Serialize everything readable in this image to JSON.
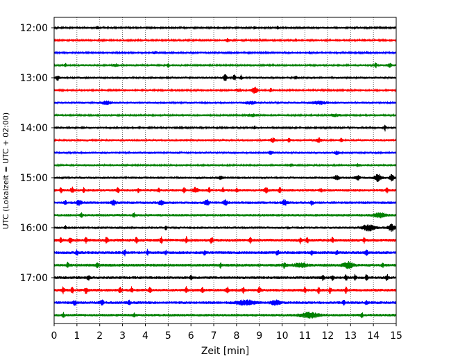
{
  "chart_data": {
    "type": "line",
    "title": "",
    "xlabel": "Zeit  [min]",
    "ylabel": "UTC (Lokalzeit = UTC + 02:00)",
    "xlim": [
      0,
      15
    ],
    "x_ticks": [
      "0",
      "1",
      "2",
      "3",
      "4",
      "5",
      "6",
      "7",
      "8",
      "9",
      "10",
      "11",
      "12",
      "13",
      "14",
      "15"
    ],
    "y_tick_labels": [
      "12:00",
      "13:00",
      "14:00",
      "15:00",
      "16:00",
      "17:00"
    ],
    "grid": "vertical dotted",
    "trace_interval_minutes": 15,
    "trace_colors": [
      "#000000",
      "#ff0000",
      "#0000ff",
      "#008000"
    ],
    "series": [
      {
        "start": "12:00",
        "color": "#000000",
        "noise": 0.2,
        "bursts": [
          [
            1.9,
            0.06,
            2
          ],
          [
            8.8,
            0.05,
            2
          ],
          [
            9.8,
            0.05,
            2
          ],
          [
            13.2,
            0.05,
            1.5
          ]
        ]
      },
      {
        "start": "12:15",
        "color": "#ff0000",
        "noise": 0.15,
        "bursts": [
          [
            7.6,
            0.1,
            2
          ],
          [
            10.6,
            0.05,
            1.5
          ],
          [
            13.6,
            0.05,
            1.2
          ]
        ]
      },
      {
        "start": "12:30",
        "color": "#0000ff",
        "noise": 0.2,
        "bursts": [
          [
            4.4,
            0.1,
            1.5
          ],
          [
            11.2,
            0.05,
            1.5
          ],
          [
            13.7,
            0.05,
            1.2
          ]
        ]
      },
      {
        "start": "12:45",
        "color": "#008000",
        "noise": 0.25,
        "bursts": [
          [
            0.5,
            0.05,
            2
          ],
          [
            2.7,
            0.1,
            1.5
          ],
          [
            5.0,
            0.04,
            4
          ],
          [
            14.1,
            0.04,
            4
          ],
          [
            14.7,
            0.1,
            2.5
          ]
        ]
      },
      {
        "start": "13:00",
        "color": "#000000",
        "noise": 0.3,
        "bursts": [
          [
            0.15,
            0.08,
            3
          ],
          [
            7.5,
            0.08,
            4
          ],
          [
            7.9,
            0.06,
            3.5
          ],
          [
            8.2,
            0.05,
            3
          ],
          [
            10.6,
            0.05,
            2
          ]
        ]
      },
      {
        "start": "13:15",
        "color": "#ff0000",
        "noise": 0.2,
        "bursts": [
          [
            8.1,
            0.15,
            1.5
          ],
          [
            8.8,
            0.15,
            4
          ],
          [
            9.5,
            0.06,
            2
          ]
        ]
      },
      {
        "start": "13:30",
        "color": "#0000ff",
        "noise": 0.35,
        "bursts": [
          [
            2.3,
            0.2,
            2
          ],
          [
            8.6,
            0.2,
            1.8
          ],
          [
            11.6,
            0.3,
            1.8
          ]
        ]
      },
      {
        "start": "13:45",
        "color": "#008000",
        "noise": 0.25,
        "bursts": [
          [
            8.7,
            0.2,
            1.5
          ],
          [
            12.3,
            0.2,
            1.5
          ]
        ]
      },
      {
        "start": "14:00",
        "color": "#000000",
        "noise": 0.2,
        "bursts": [
          [
            8.8,
            0.05,
            2
          ],
          [
            14.5,
            0.03,
            5
          ]
        ]
      },
      {
        "start": "14:15",
        "color": "#ff0000",
        "noise": 0.35,
        "bursts": [
          [
            9.6,
            0.1,
            3
          ],
          [
            10.3,
            0.05,
            2.5
          ],
          [
            11.6,
            0.1,
            3
          ],
          [
            12.6,
            0.05,
            2.5
          ]
        ]
      },
      {
        "start": "14:30",
        "color": "#0000ff",
        "noise": 0.35,
        "bursts": [
          [
            9.5,
            0.1,
            2
          ],
          [
            12.4,
            0.1,
            2
          ]
        ]
      },
      {
        "start": "14:45",
        "color": "#008000",
        "noise": 0.3,
        "bursts": [
          [
            10.4,
            0.08,
            1.5
          ],
          [
            13.3,
            0.1,
            1.5
          ]
        ]
      },
      {
        "start": "15:00",
        "color": "#000000",
        "noise": 0.45,
        "bursts": [
          [
            7.3,
            0.08,
            2
          ],
          [
            12.4,
            0.1,
            3
          ],
          [
            13.3,
            0.1,
            3
          ],
          [
            14.2,
            0.15,
            4.5
          ],
          [
            14.8,
            0.1,
            4
          ]
        ]
      },
      {
        "start": "15:15",
        "color": "#ff0000",
        "noise": 0.6,
        "bursts": [
          [
            0.3,
            0.05,
            3.5
          ],
          [
            0.8,
            0.08,
            3.5
          ],
          [
            1.3,
            0.04,
            3
          ],
          [
            2.8,
            0.06,
            3.5
          ],
          [
            3.7,
            0.04,
            3
          ],
          [
            4.6,
            0.04,
            3
          ],
          [
            5.7,
            0.06,
            3
          ],
          [
            6.2,
            0.1,
            3.5
          ],
          [
            6.8,
            0.05,
            3
          ],
          [
            7.4,
            0.05,
            3.5
          ],
          [
            8.0,
            0.05,
            3
          ],
          [
            9.3,
            0.08,
            3
          ],
          [
            9.9,
            0.06,
            3.5
          ],
          [
            11.7,
            0.05,
            3
          ],
          [
            14.6,
            0.05,
            3
          ]
        ]
      },
      {
        "start": "15:30",
        "color": "#0000ff",
        "noise": 0.6,
        "bursts": [
          [
            0.5,
            0.05,
            3
          ],
          [
            1.1,
            0.1,
            3.5
          ],
          [
            2.6,
            0.1,
            3.5
          ],
          [
            4.7,
            0.1,
            3.5
          ],
          [
            6.7,
            0.1,
            3.5
          ],
          [
            7.5,
            0.1,
            3.5
          ],
          [
            10.1,
            0.1,
            3.5
          ],
          [
            11.3,
            0.06,
            3
          ]
        ]
      },
      {
        "start": "15:45",
        "color": "#008000",
        "noise": 0.55,
        "bursts": [
          [
            1.2,
            0.05,
            2.5
          ],
          [
            3.5,
            0.05,
            3
          ],
          [
            14.3,
            0.25,
            3
          ]
        ]
      },
      {
        "start": "16:00",
        "color": "#000000",
        "noise": 0.45,
        "bursts": [
          [
            0.5,
            0.04,
            2.5
          ],
          [
            4.9,
            0.04,
            3
          ],
          [
            13.8,
            0.25,
            4.5
          ],
          [
            14.8,
            0.15,
            4.5
          ]
        ]
      },
      {
        "start": "16:15",
        "color": "#ff0000",
        "noise": 0.8,
        "bursts": [
          [
            0.3,
            0.06,
            4
          ],
          [
            0.7,
            0.06,
            4
          ],
          [
            1.4,
            0.05,
            4
          ],
          [
            2.3,
            0.06,
            4
          ],
          [
            3.6,
            0.05,
            4
          ],
          [
            4.7,
            0.05,
            4
          ],
          [
            5.8,
            0.04,
            4
          ],
          [
            6.9,
            0.06,
            4
          ],
          [
            8.6,
            0.05,
            4
          ],
          [
            10.8,
            0.05,
            4
          ],
          [
            11.1,
            0.05,
            4
          ],
          [
            12.2,
            0.05,
            4
          ],
          [
            13.6,
            0.05,
            4
          ]
        ]
      },
      {
        "start": "16:30",
        "color": "#0000ff",
        "noise": 0.8,
        "bursts": [
          [
            1.0,
            0.05,
            3.5
          ],
          [
            3.1,
            0.05,
            3.5
          ],
          [
            4.1,
            0.04,
            3.5
          ],
          [
            4.9,
            0.04,
            3.5
          ],
          [
            6.6,
            0.04,
            3.5
          ],
          [
            9.8,
            0.06,
            3.5
          ],
          [
            11.3,
            0.05,
            3.5
          ],
          [
            12.4,
            0.05,
            3.5
          ],
          [
            13.7,
            0.05,
            3.5
          ]
        ]
      },
      {
        "start": "16:45",
        "color": "#008000",
        "noise": 0.8,
        "bursts": [
          [
            0.6,
            0.05,
            3
          ],
          [
            1.9,
            0.05,
            3
          ],
          [
            7.3,
            0.05,
            3
          ],
          [
            10.1,
            0.1,
            3
          ],
          [
            10.8,
            0.25,
            3
          ],
          [
            12.9,
            0.2,
            4
          ],
          [
            14.4,
            0.05,
            3
          ]
        ]
      },
      {
        "start": "17:00",
        "color": "#000000",
        "noise": 0.7,
        "bursts": [
          [
            1.5,
            0.05,
            3
          ],
          [
            6.0,
            0.05,
            3
          ],
          [
            11.8,
            0.05,
            4
          ],
          [
            12.2,
            0.05,
            4
          ],
          [
            12.8,
            0.05,
            4
          ],
          [
            13.2,
            0.05,
            4
          ],
          [
            13.7,
            0.05,
            4
          ],
          [
            14.6,
            0.05,
            4
          ]
        ]
      },
      {
        "start": "17:15",
        "color": "#ff0000",
        "noise": 0.7,
        "bursts": [
          [
            0.4,
            0.06,
            4
          ],
          [
            0.8,
            0.06,
            4
          ],
          [
            1.4,
            0.06,
            4
          ],
          [
            2.9,
            0.06,
            4
          ],
          [
            3.4,
            0.05,
            4
          ],
          [
            4.2,
            0.05,
            4
          ],
          [
            5.8,
            0.05,
            4
          ],
          [
            6.5,
            0.05,
            4
          ],
          [
            7.6,
            0.06,
            4
          ],
          [
            8.3,
            0.06,
            4
          ],
          [
            9.0,
            0.06,
            4
          ],
          [
            11.0,
            0.05,
            4
          ],
          [
            11.6,
            0.05,
            4
          ],
          [
            12.1,
            0.05,
            4
          ],
          [
            12.8,
            0.05,
            4
          ]
        ]
      },
      {
        "start": "17:30",
        "color": "#0000ff",
        "noise": 0.7,
        "bursts": [
          [
            0.9,
            0.08,
            3
          ],
          [
            2.1,
            0.08,
            3
          ],
          [
            3.3,
            0.05,
            3
          ],
          [
            8.4,
            0.4,
            3
          ],
          [
            9.7,
            0.2,
            3
          ],
          [
            12.7,
            0.05,
            3
          ],
          [
            13.7,
            0.05,
            3
          ]
        ]
      },
      {
        "start": "17:45",
        "color": "#008000",
        "noise": 0.6,
        "bursts": [
          [
            0.4,
            0.05,
            3
          ],
          [
            3.5,
            0.05,
            3
          ],
          [
            11.2,
            0.4,
            3.5
          ],
          [
            13.5,
            0.05,
            3
          ]
        ]
      }
    ]
  }
}
